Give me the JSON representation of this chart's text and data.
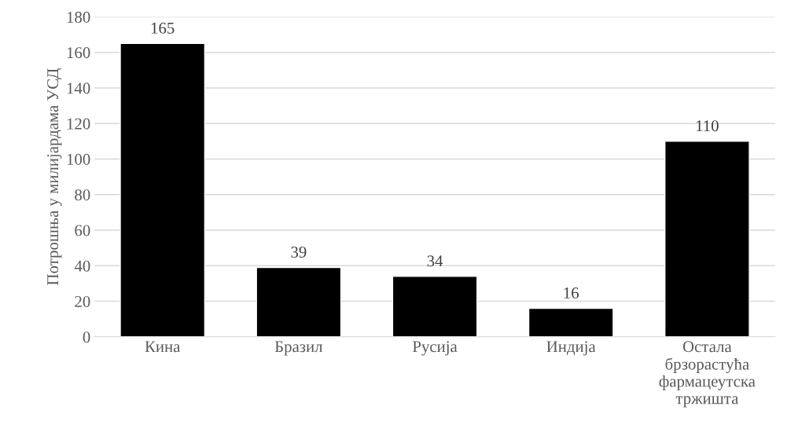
{
  "chart_data": {
    "type": "bar",
    "ylabel": "Потрошња у милијардама УСД",
    "categories": [
      "Кина",
      "Бразил",
      "Русија",
      "Индија",
      "Остала\nбрзорастућа\nфармацеутска\nтржишта"
    ],
    "values": [
      165,
      39,
      34,
      16,
      110
    ],
    "color": "#000000",
    "ylim": [
      0,
      180
    ],
    "yticks": [
      0,
      20,
      40,
      60,
      80,
      100,
      120,
      140,
      160,
      180
    ],
    "grid": "y",
    "data_labels": true
  }
}
